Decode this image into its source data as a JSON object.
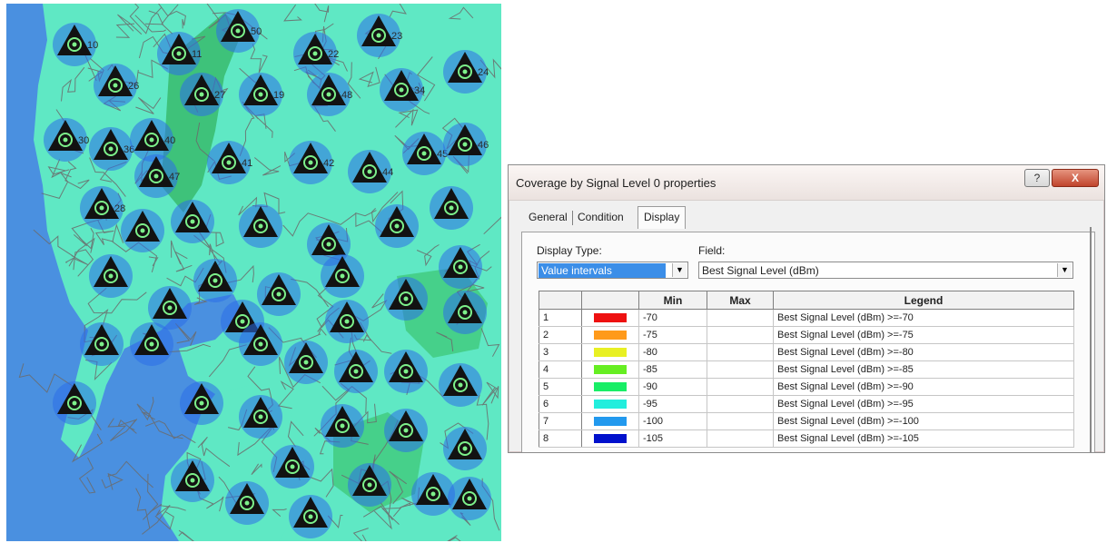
{
  "dialog": {
    "title": "Coverage by Signal Level 0 properties",
    "help_label": "?",
    "close_label": "X",
    "tabs": [
      {
        "label": "General",
        "active": false
      },
      {
        "label": "Condition",
        "active": false
      },
      {
        "label": "Display",
        "active": true
      }
    ],
    "display_type_label": "Display Type:",
    "display_type_value": "Value intervals",
    "field_label": "Field:",
    "field_value": "Best Signal Level (dBm)",
    "table": {
      "headers": [
        "",
        "",
        "Min",
        "Max",
        "Legend"
      ],
      "rows": [
        {
          "index": "1",
          "color": "#ee1111",
          "min": "-70",
          "max": "",
          "legend": "Best Signal Level (dBm) >=-70"
        },
        {
          "index": "2",
          "color": "#ff9a1a",
          "min": "-75",
          "max": "",
          "legend": "Best Signal Level (dBm) >=-75"
        },
        {
          "index": "3",
          "color": "#e8f023",
          "min": "-80",
          "max": "",
          "legend": "Best Signal Level (dBm) >=-80"
        },
        {
          "index": "4",
          "color": "#66ee22",
          "min": "-85",
          "max": "",
          "legend": "Best Signal Level (dBm) >=-85"
        },
        {
          "index": "5",
          "color": "#18ee66",
          "min": "-90",
          "max": "",
          "legend": "Best Signal Level (dBm) >=-90"
        },
        {
          "index": "6",
          "color": "#22eedd",
          "min": "-95",
          "max": "",
          "legend": "Best Signal Level (dBm) >=-95"
        },
        {
          "index": "7",
          "color": "#2299ee",
          "min": "-100",
          "max": "",
          "legend": "Best Signal Level (dBm) >=-100"
        },
        {
          "index": "8",
          "color": "#0011cc",
          "min": "-105",
          "max": "",
          "legend": "Best Signal Level (dBm) >=-105"
        }
      ]
    }
  },
  "map": {
    "colors": {
      "sea": "#4a90e0",
      "coverage_cyan": "#5fe8c4",
      "coverage_green": "#3ec27a",
      "roads": "#6b6b6b",
      "site_fill": "#121212",
      "site_ring": "#2b6ee8",
      "site_glow": "#7df08a"
    },
    "site_labels": [
      "10",
      "11",
      "50",
      "22",
      "23",
      "24",
      "26",
      "27",
      "19",
      "48",
      "34",
      "30",
      "36",
      "40",
      "41",
      "42",
      "44",
      "45",
      "46",
      "47",
      "28"
    ]
  }
}
